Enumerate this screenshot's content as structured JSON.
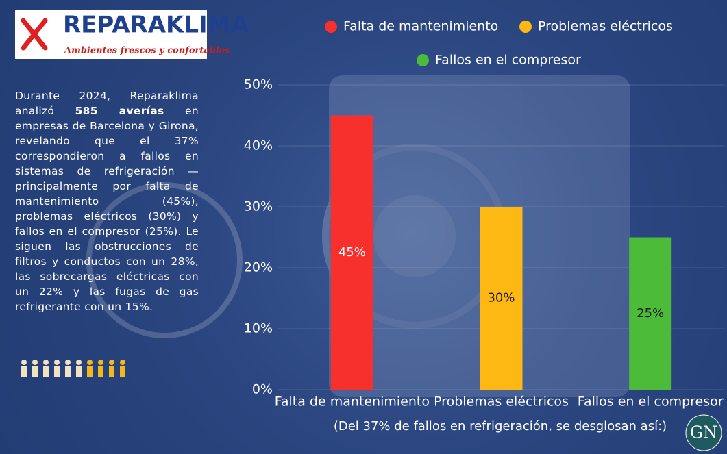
{
  "logo": {
    "name": "REPARAKLIMA",
    "tagline": "Ambientes frescos y confortables"
  },
  "intro": {
    "before": "Durante 2024, Reparaklima analizó",
    "bold": "585 averías",
    "after": "en empresas de Barcelona y Girona, revelando que el 37% correspondieron a fallos en sistemas de refrigeración — principalmente por falta de mantenimiento (45%), problemas eléctricos (30%) y fallos en el compresor (25%). Le siguen las obstrucciones de filtros y conductos con un 28%, las sobrecargas eléctricas con un 22% y las fugas de gas refrigerante con un 15%."
  },
  "chart_data": {
    "type": "bar",
    "categories": [
      "Falta de mantenimiento",
      "Problemas eléctricos",
      "Fallos en el compresor"
    ],
    "values": [
      45,
      30,
      25
    ],
    "value_labels": [
      "45%",
      "30%",
      "25%"
    ],
    "colors": [
      "#f7302e",
      "#fdb813",
      "#4cbb3a"
    ],
    "label_colors": [
      "#ffffff",
      "#1a1a1a",
      "#1a1a1a"
    ],
    "ylim": [
      0,
      50
    ],
    "yticks": [
      {
        "value": 0,
        "label": "0%"
      },
      {
        "value": 10,
        "label": "10%"
      },
      {
        "value": 20,
        "label": "20%"
      },
      {
        "value": 30,
        "label": "30%"
      },
      {
        "value": 40,
        "label": "40%"
      },
      {
        "value": 50,
        "label": "50%"
      }
    ],
    "grid": true,
    "xlabel": "(Del 37% de fallos en refrigeración, se desglosan así:)"
  },
  "badge": "GN"
}
